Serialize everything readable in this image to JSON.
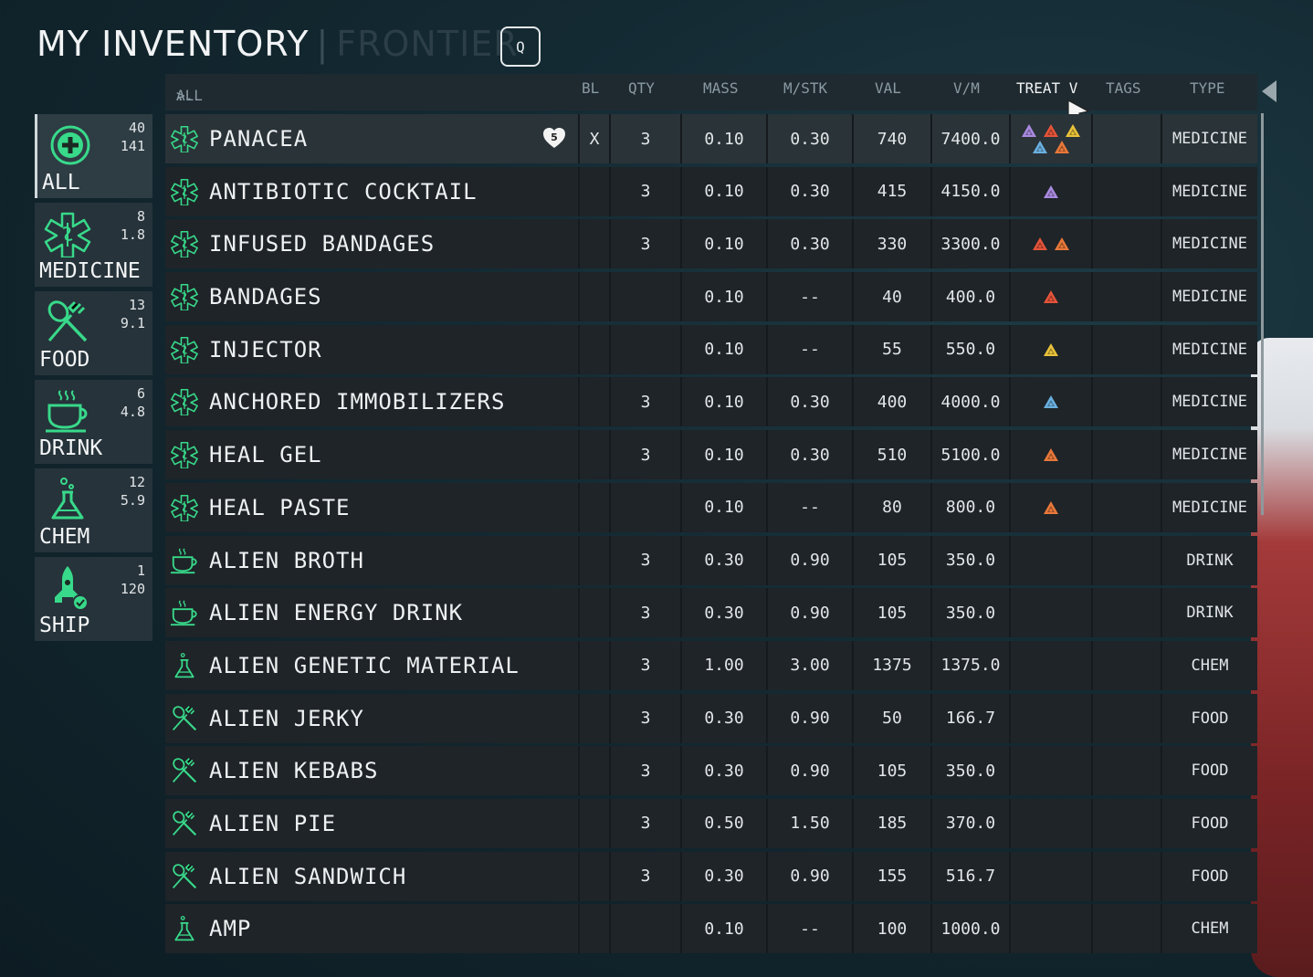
{
  "title": {
    "main": "MY INVENTORY",
    "separator": "|",
    "sub": "FRONTIER",
    "key_hint": "Q"
  },
  "breadcrumb": {
    "dots": "..",
    "arrow": ">",
    "current": "ALL"
  },
  "columns": [
    "BL",
    "QTY",
    "MASS",
    "M/STK",
    "VAL",
    "V/M",
    "TREAT V",
    "TAGS",
    "TYPE"
  ],
  "sidebar": [
    {
      "label": "ALL",
      "n1": "40",
      "n2": "141",
      "icon": "plus-icon"
    },
    {
      "label": "MEDICINE",
      "n1": "8",
      "n2": "1.8",
      "icon": "medical-cross-icon"
    },
    {
      "label": "FOOD",
      "n1": "13",
      "n2": "9.1",
      "icon": "fork-knife-icon"
    },
    {
      "label": "DRINK",
      "n1": "6",
      "n2": "4.8",
      "icon": "cup-icon"
    },
    {
      "label": "CHEM",
      "n1": "12",
      "n2": "5.9",
      "icon": "flask-icon"
    },
    {
      "label": "SHIP",
      "n1": "1",
      "n2": "120",
      "icon": "rocket-icon"
    }
  ],
  "colors": {
    "accent": "#38d98a",
    "purple": "#a98ae0",
    "red": "#e4543a",
    "yellow": "#e8c23a",
    "blue": "#6ab0e0",
    "orange": "#e8783a"
  },
  "items": [
    {
      "name": "PANACEA",
      "icon": "med",
      "badge": "5",
      "bl": "X",
      "qty": "3",
      "mass": "0.10",
      "mstk": "0.30",
      "val": "740",
      "vm": "7400.0",
      "treat": [
        "purple",
        "red",
        "yellow",
        "blue",
        "orange"
      ],
      "type": "MEDICINE"
    },
    {
      "name": "ANTIBIOTIC COCKTAIL",
      "icon": "med",
      "bl": "",
      "qty": "3",
      "mass": "0.10",
      "mstk": "0.30",
      "val": "415",
      "vm": "4150.0",
      "treat": [
        "purple"
      ],
      "type": "MEDICINE"
    },
    {
      "name": "INFUSED BANDAGES",
      "icon": "med",
      "bl": "",
      "qty": "3",
      "mass": "0.10",
      "mstk": "0.30",
      "val": "330",
      "vm": "3300.0",
      "treat": [
        "red",
        "orange"
      ],
      "type": "MEDICINE"
    },
    {
      "name": "BANDAGES",
      "icon": "med",
      "bl": "",
      "qty": "",
      "mass": "0.10",
      "mstk": "--",
      "val": "40",
      "vm": "400.0",
      "treat": [
        "red"
      ],
      "type": "MEDICINE"
    },
    {
      "name": "INJECTOR",
      "icon": "med",
      "bl": "",
      "qty": "",
      "mass": "0.10",
      "mstk": "--",
      "val": "55",
      "vm": "550.0",
      "treat": [
        "yellow"
      ],
      "type": "MEDICINE"
    },
    {
      "name": "ANCHORED IMMOBILIZERS",
      "icon": "med",
      "bl": "",
      "qty": "3",
      "mass": "0.10",
      "mstk": "0.30",
      "val": "400",
      "vm": "4000.0",
      "treat": [
        "blue"
      ],
      "type": "MEDICINE"
    },
    {
      "name": "HEAL GEL",
      "icon": "med",
      "bl": "",
      "qty": "3",
      "mass": "0.10",
      "mstk": "0.30",
      "val": "510",
      "vm": "5100.0",
      "treat": [
        "orange"
      ],
      "type": "MEDICINE"
    },
    {
      "name": "HEAL PASTE",
      "icon": "med",
      "bl": "",
      "qty": "",
      "mass": "0.10",
      "mstk": "--",
      "val": "80",
      "vm": "800.0",
      "treat": [
        "orange"
      ],
      "type": "MEDICINE"
    },
    {
      "name": "ALIEN BROTH",
      "icon": "drink",
      "bl": "",
      "qty": "3",
      "mass": "0.30",
      "mstk": "0.90",
      "val": "105",
      "vm": "350.0",
      "treat": [],
      "type": "DRINK"
    },
    {
      "name": "ALIEN ENERGY DRINK",
      "icon": "drink",
      "bl": "",
      "qty": "3",
      "mass": "0.30",
      "mstk": "0.90",
      "val": "105",
      "vm": "350.0",
      "treat": [],
      "type": "DRINK"
    },
    {
      "name": "ALIEN GENETIC MATERIAL",
      "icon": "chem",
      "bl": "",
      "qty": "3",
      "mass": "1.00",
      "mstk": "3.00",
      "val": "1375",
      "vm": "1375.0",
      "treat": [],
      "type": "CHEM"
    },
    {
      "name": "ALIEN JERKY",
      "icon": "food",
      "bl": "",
      "qty": "3",
      "mass": "0.30",
      "mstk": "0.90",
      "val": "50",
      "vm": "166.7",
      "treat": [],
      "type": "FOOD"
    },
    {
      "name": "ALIEN KEBABS",
      "icon": "food",
      "bl": "",
      "qty": "3",
      "mass": "0.30",
      "mstk": "0.90",
      "val": "105",
      "vm": "350.0",
      "treat": [],
      "type": "FOOD"
    },
    {
      "name": "ALIEN PIE",
      "icon": "food",
      "bl": "",
      "qty": "3",
      "mass": "0.50",
      "mstk": "1.50",
      "val": "185",
      "vm": "370.0",
      "treat": [],
      "type": "FOOD"
    },
    {
      "name": "ALIEN SANDWICH",
      "icon": "food",
      "bl": "",
      "qty": "3",
      "mass": "0.30",
      "mstk": "0.90",
      "val": "155",
      "vm": "516.7",
      "treat": [],
      "type": "FOOD"
    },
    {
      "name": "AMP",
      "icon": "chem",
      "bl": "",
      "qty": "",
      "mass": "0.10",
      "mstk": "--",
      "val": "100",
      "vm": "1000.0",
      "treat": [],
      "type": "CHEM"
    }
  ]
}
